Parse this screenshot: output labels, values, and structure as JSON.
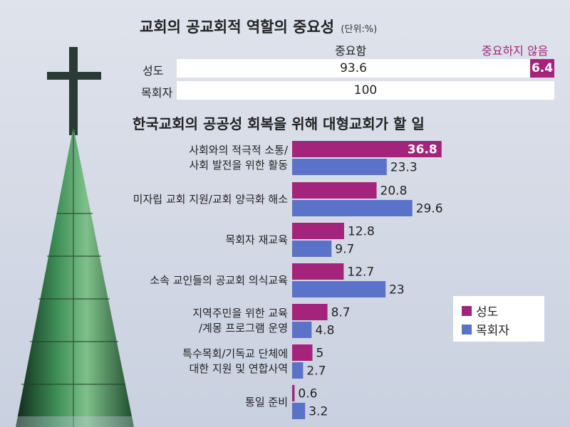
{
  "colors": {
    "saints": "#a4237b",
    "pastors": "#5a72c8",
    "background": "#d3d9e6"
  },
  "top": {
    "title": "교회의 공교회적 역할의 중요성",
    "unit": "(단위:%)",
    "header_important": "중요함",
    "header_not_important": "중요하지 않음",
    "rows": [
      {
        "label": "성도",
        "important": 93.6,
        "important_text": "93.6",
        "not_important": 6.4,
        "not_important_text": "6.4"
      },
      {
        "label": "목회자",
        "important": 100,
        "important_text": "100",
        "not_important": 0,
        "not_important_text": ""
      }
    ]
  },
  "legend": {
    "saints": "성도",
    "pastors": "목회자"
  },
  "chart_data": [
    {
      "type": "bar",
      "orientation": "horizontal",
      "stacked": true,
      "title": "교회의 공교회적 역할의 중요성",
      "unit": "(단위:%)",
      "categories": [
        "성도",
        "목회자"
      ],
      "series": [
        {
          "name": "중요함",
          "values": [
            93.6,
            100
          ]
        },
        {
          "name": "중요하지 않음",
          "values": [
            6.4,
            0
          ]
        }
      ]
    },
    {
      "type": "bar",
      "orientation": "horizontal",
      "title": "한국교회의 공공성 회복을 위해 대형교회가 할 일",
      "categories": [
        [
          "사회와의 적극적 소통/",
          "사회 발전을 위한 활동"
        ],
        [
          "미자립 교회 지원/교회 양극화 해소"
        ],
        [
          "목회자 재교육"
        ],
        [
          "소속 교인들의 공교회 의식교육"
        ],
        [
          "지역주민을 위한 교육",
          "/계몽 프로그램 운영"
        ],
        [
          "특수목회/기독교 단체에",
          "대한 지원 및 연합사역"
        ],
        [
          "통일 준비"
        ]
      ],
      "series": [
        {
          "name": "성도",
          "values": [
            36.8,
            20.8,
            12.8,
            12.7,
            8.7,
            5,
            0.6
          ],
          "labels": [
            "36.8",
            "20.8",
            "12.8",
            "12.7",
            "8.7",
            "5",
            "0.6"
          ]
        },
        {
          "name": "목회자",
          "values": [
            23.3,
            29.6,
            9.7,
            23,
            4.8,
            2.7,
            3.2
          ],
          "labels": [
            "23.3",
            "29.6",
            "9.7",
            "23",
            "4.8",
            "2.7",
            "3.2"
          ]
        }
      ],
      "legend_position": "right",
      "grid": false
    }
  ]
}
